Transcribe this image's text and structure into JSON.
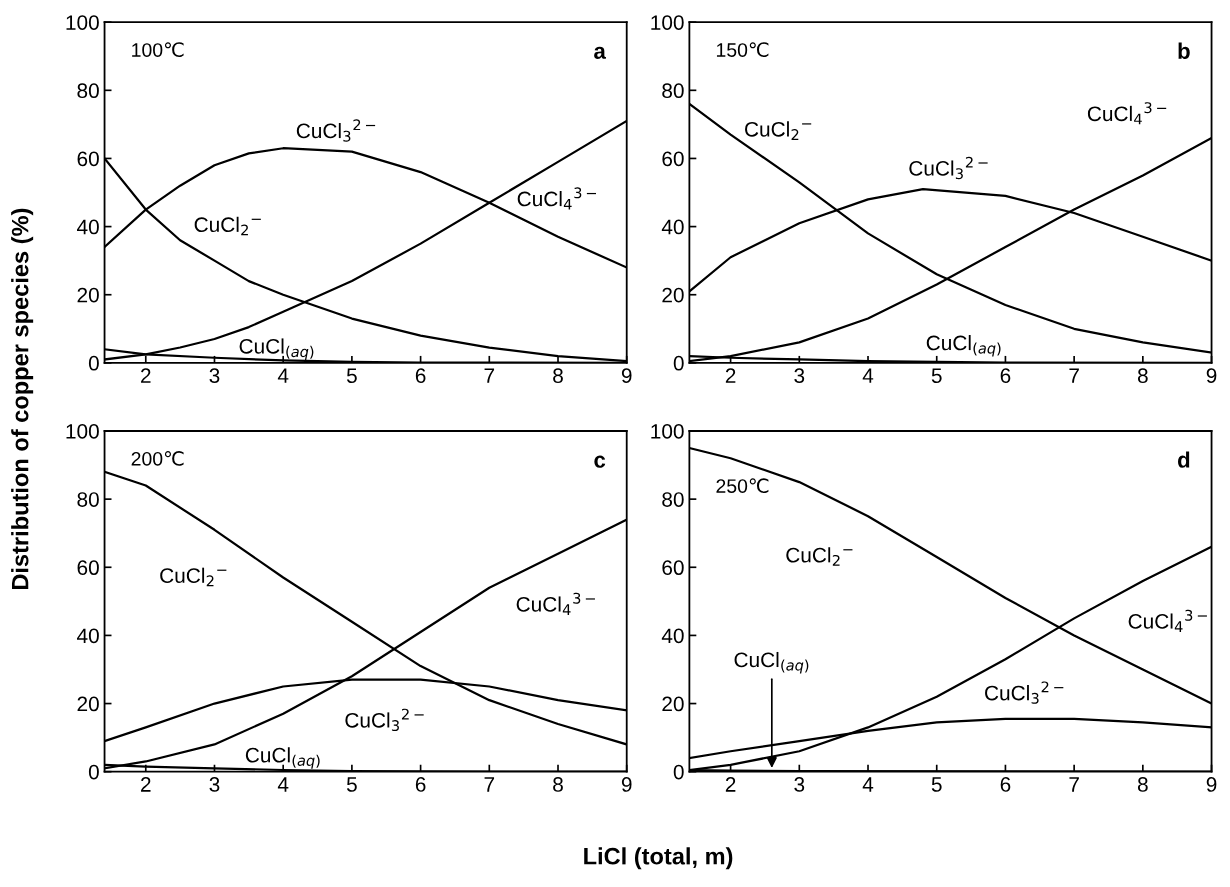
{
  "chart_data": [
    {
      "type": "line",
      "xlim": [
        1.4,
        9
      ],
      "ylim": [
        0,
        100
      ],
      "xticks": [
        2,
        3,
        4,
        5,
        6,
        7,
        8,
        9
      ],
      "yticks": [
        0,
        20,
        40,
        60,
        80,
        100
      ],
      "ylabel": "Distribution of copper species (%)",
      "grid": false,
      "series": [
        {
          "color": "#000000",
          "x": [
            1.4,
            2,
            2.5,
            3,
            3.5,
            4,
            5,
            6,
            7,
            8,
            9
          ],
          "values": [
            60,
            45,
            36,
            30,
            24,
            20,
            13,
            8,
            4.5,
            2,
            0.5
          ]
        },
        {
          "color": "#000000",
          "x": [
            1.4,
            2,
            2.5,
            3,
            3.5,
            4,
            5,
            6,
            7,
            8,
            9
          ],
          "values": [
            34,
            45,
            52,
            58,
            61.5,
            63,
            62,
            56,
            47,
            37,
            28
          ]
        },
        {
          "color": "#000000",
          "x": [
            1.4,
            2,
            2.5,
            3,
            3.5,
            4,
            5,
            6,
            7,
            8,
            9
          ],
          "values": [
            1,
            2.5,
            4.5,
            7,
            10.5,
            15,
            24,
            35,
            47,
            59,
            71
          ]
        },
        {
          "color": "#000000",
          "x": [
            1.4,
            2,
            3,
            4,
            5,
            6,
            9
          ],
          "values": [
            4,
            2.5,
            1.5,
            0.7,
            0.3,
            0.1,
            0
          ]
        }
      ],
      "annotations": [
        "100℃",
        "a",
        "CuCl$_{2}$$^{−}$",
        "CuCl$_{3}$$^{2−}$",
        "CuCl$_{4}$$^{3−}$",
        "CuCl$_{(aq)}$"
      ]
    },
    {
      "type": "line",
      "xlim": [
        1.4,
        9
      ],
      "ylim": [
        0,
        100
      ],
      "xticks": [
        2,
        3,
        4,
        5,
        6,
        7,
        8,
        9
      ],
      "yticks": [
        0,
        20,
        40,
        60,
        80,
        100
      ],
      "grid": false,
      "series": [
        {
          "color": "#000000",
          "x": [
            1.4,
            2,
            3,
            4,
            5,
            6,
            7,
            8,
            9
          ],
          "values": [
            76,
            67,
            53,
            38,
            26,
            17,
            10,
            6,
            3
          ]
        },
        {
          "color": "#000000",
          "x": [
            1.4,
            2,
            3,
            4,
            4.8,
            6,
            7,
            8,
            9
          ],
          "values": [
            21,
            31,
            41,
            48,
            51,
            49,
            44,
            37,
            30
          ]
        },
        {
          "color": "#000000",
          "x": [
            1.4,
            2,
            3,
            4,
            5,
            6,
            7,
            8,
            9
          ],
          "values": [
            0.5,
            2,
            6,
            13,
            23,
            34,
            45,
            55,
            66
          ]
        },
        {
          "color": "#000000",
          "x": [
            1.4,
            2,
            3,
            4,
            5,
            6,
            9
          ],
          "values": [
            2,
            1.5,
            1,
            0.5,
            0.3,
            0.1,
            0
          ]
        }
      ],
      "annotations": [
        "150℃",
        "b",
        "CuCl$_{2}$$^{−}$",
        "CuCl$_{3}$$^{2−}$",
        "CuCl$_{4}$$^{3−}$",
        "CuCl$_{(aq)}$"
      ]
    },
    {
      "type": "line",
      "xlim": [
        1.4,
        9
      ],
      "ylim": [
        0,
        100
      ],
      "xticks": [
        2,
        3,
        4,
        5,
        6,
        7,
        8,
        9
      ],
      "yticks": [
        0,
        20,
        40,
        60,
        80,
        100
      ],
      "xlabel": "LiCl (total, m)",
      "grid": false,
      "series": [
        {
          "color": "#000000",
          "x": [
            1.4,
            2,
            3,
            4,
            5,
            6,
            7,
            8,
            9
          ],
          "values": [
            88,
            84,
            71,
            57,
            44,
            31,
            21,
            14,
            8
          ]
        },
        {
          "color": "#000000",
          "x": [
            1.4,
            2,
            3,
            4,
            5,
            6,
            7,
            8,
            9
          ],
          "values": [
            9,
            13,
            20,
            25,
            27,
            27,
            25,
            21,
            18
          ]
        },
        {
          "color": "#000000",
          "x": [
            1.4,
            2,
            3,
            4,
            5,
            6,
            7,
            8,
            9
          ],
          "values": [
            1,
            3,
            8,
            17,
            28,
            41,
            54,
            64,
            74
          ]
        },
        {
          "color": "#000000",
          "x": [
            1.4,
            2,
            3,
            4,
            5,
            6,
            9
          ],
          "values": [
            2,
            1.5,
            1,
            0.5,
            0.2,
            0.1,
            0
          ]
        }
      ],
      "annotations": [
        "200℃",
        "c",
        "CuCl$_{2}$$^{−}$",
        "CuCl$_{3}$$^{2−}$",
        "CuCl$_{4}$$^{3−}$",
        "CuCl$_{(aq)}$"
      ]
    },
    {
      "type": "line",
      "xlim": [
        1.4,
        9
      ],
      "ylim": [
        0,
        100
      ],
      "xticks": [
        2,
        3,
        4,
        5,
        6,
        7,
        8,
        9
      ],
      "yticks": [
        0,
        20,
        40,
        60,
        80,
        100
      ],
      "grid": false,
      "series": [
        {
          "color": "#000000",
          "x": [
            1.4,
            2,
            3,
            4,
            5,
            6,
            7,
            8,
            9
          ],
          "values": [
            95,
            92,
            85,
            75,
            63,
            51,
            40,
            30,
            20
          ]
        },
        {
          "color": "#000000",
          "x": [
            1.4,
            2,
            3,
            4,
            5,
            6,
            7,
            8,
            9
          ],
          "values": [
            4,
            6,
            9,
            12,
            14.5,
            15.5,
            15.5,
            14.5,
            13
          ]
        },
        {
          "color": "#000000",
          "x": [
            1.4,
            2,
            3,
            4,
            5,
            6,
            7,
            8,
            9
          ],
          "values": [
            0.5,
            2,
            6,
            13,
            22,
            33,
            45,
            56,
            66
          ]
        },
        {
          "color": "#000000",
          "x": [
            1.4,
            2,
            3,
            9
          ],
          "values": [
            0.5,
            0.3,
            0.2,
            0
          ]
        }
      ],
      "annotations": [
        "250℃",
        "d",
        "CuCl$_{2}$$^{−}$",
        "CuCl$_{3}$$^{2−}$",
        "CuCl$_{4}$$^{3−}$",
        {
          "text": "CuCl$_{(aq)}$",
          "x": 2.6,
          "y": 0.25
        }
      ]
    }
  ]
}
